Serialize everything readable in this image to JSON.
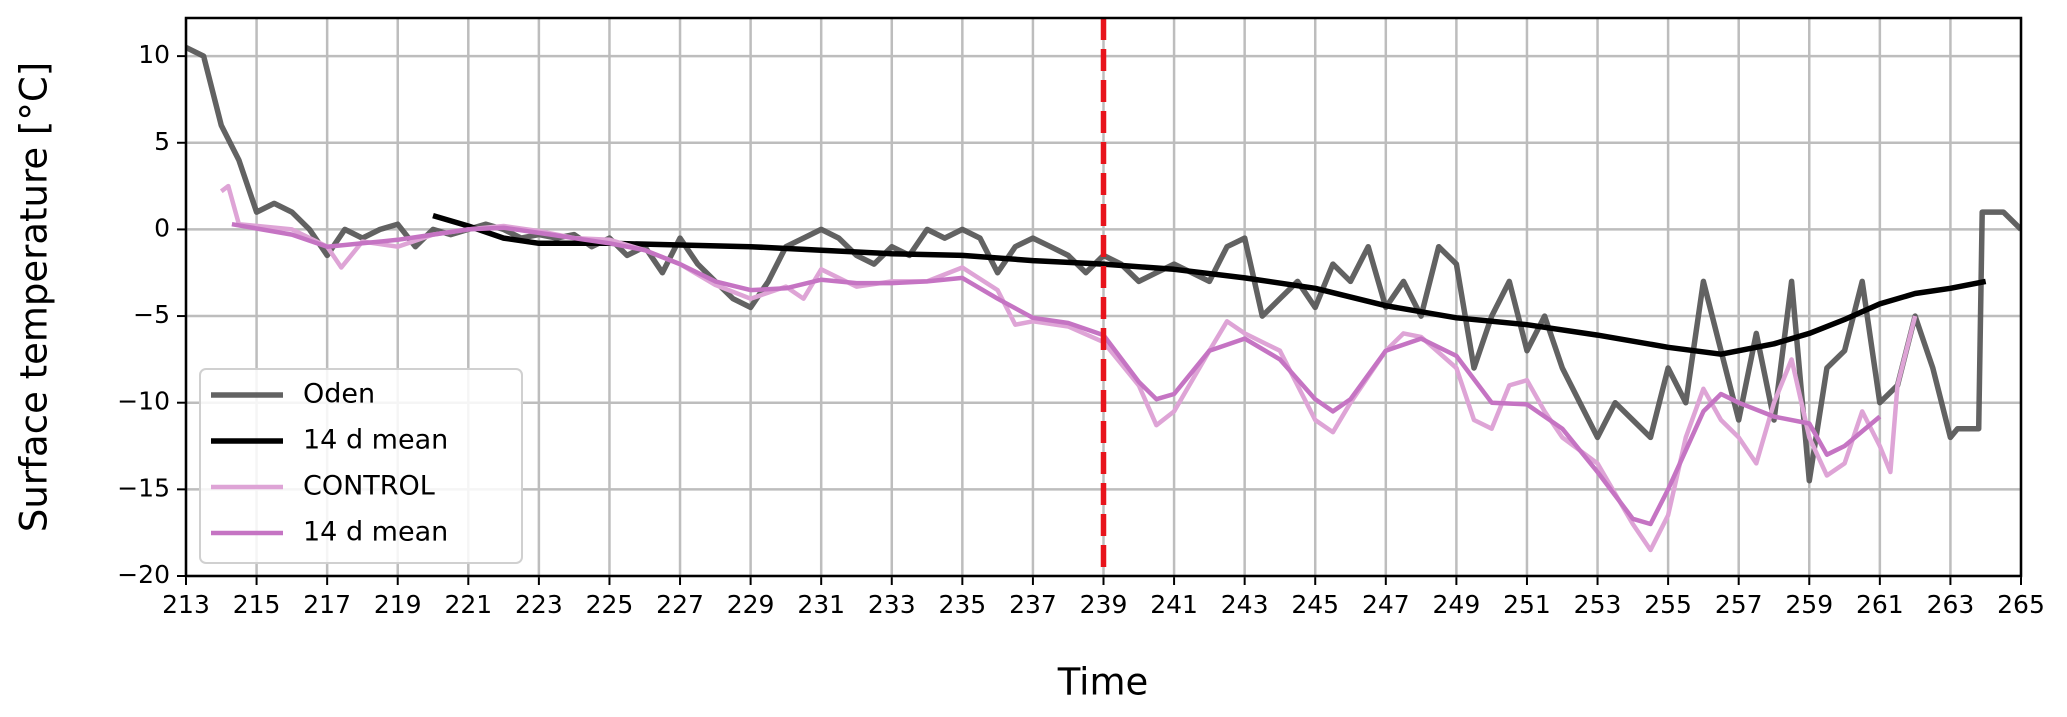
{
  "chart_data": {
    "type": "line",
    "xlabel": "Time",
    "ylabel": "Surface temperature [°C]",
    "xlim": [
      213,
      265
    ],
    "ylim": [
      -20,
      12.2
    ],
    "xticks": [
      213,
      215,
      217,
      219,
      221,
      223,
      225,
      227,
      229,
      231,
      233,
      235,
      237,
      239,
      241,
      243,
      245,
      247,
      249,
      251,
      253,
      255,
      257,
      259,
      261,
      263,
      265
    ],
    "yticks": [
      {
        "value": -20,
        "label": "−20"
      },
      {
        "value": -15,
        "label": "−15"
      },
      {
        "value": -10,
        "label": "−10"
      },
      {
        "value": -5,
        "label": "−5"
      },
      0,
      5,
      10
    ],
    "grid": true,
    "legend": "lower left",
    "vline": {
      "x": 239,
      "color": "#e8141c"
    },
    "series": [
      {
        "name": "Oden",
        "color": "#5a5a5a",
        "x": [
          213,
          213.5,
          214,
          214.5,
          215,
          215.5,
          216,
          216.5,
          217,
          217.5,
          218,
          218.5,
          219,
          219.5,
          220,
          220.5,
          221,
          221.5,
          222,
          222.5,
          223,
          223.5,
          224,
          224.5,
          225,
          225.5,
          226,
          226.5,
          227,
          227.5,
          228,
          228.5,
          229,
          229.5,
          230,
          230.5,
          231,
          231.5,
          232,
          232.5,
          233,
          233.5,
          234,
          234.5,
          235,
          235.5,
          236,
          236.5,
          237,
          237.5,
          238,
          238.5,
          239,
          239.5,
          240,
          240.5,
          241,
          241.5,
          242,
          242.5,
          243,
          243.5,
          244,
          244.5,
          245,
          245.5,
          246,
          246.5,
          247,
          247.5,
          248,
          248.5,
          249,
          249.5,
          250,
          250.5,
          251,
          251.5,
          252,
          252.5,
          253,
          253.5,
          254,
          254.5,
          255,
          255.5,
          256,
          256.5,
          257,
          257.5,
          258,
          258.5,
          259,
          259.5,
          260,
          260.5,
          261,
          261.5,
          262,
          262.5,
          263,
          263.2,
          263.8,
          263.9,
          264.5,
          265
        ],
        "values": [
          10.5,
          10,
          6,
          4,
          1,
          1.5,
          1,
          0,
          -1.5,
          0,
          -0.5,
          0,
          0.3,
          -1,
          0,
          -0.3,
          0,
          0.3,
          0,
          -0.5,
          -0.3,
          -0.5,
          -0.3,
          -1,
          -0.5,
          -1.5,
          -1,
          -2.5,
          -0.5,
          -2,
          -3,
          -4,
          -4.5,
          -3,
          -1,
          -0.5,
          0,
          -0.5,
          -1.5,
          -2,
          -1,
          -1.5,
          0,
          -0.5,
          0,
          -0.5,
          -2.5,
          -1,
          -0.5,
          -1,
          -1.5,
          -2.5,
          -1.5,
          -2,
          -3,
          -2.5,
          -2,
          -2.5,
          -3,
          -1,
          -0.5,
          -5,
          -4,
          -3,
          -4.5,
          -2,
          -3,
          -1,
          -4.5,
          -3,
          -5,
          -1,
          -2,
          -8,
          -5,
          -3,
          -7,
          -5,
          -8,
          -10,
          -12,
          -10,
          -11,
          -12,
          -8,
          -10,
          -3,
          -7,
          -11,
          -6,
          -11,
          -3,
          -14.5,
          -8,
          -7,
          -3,
          -10,
          -9,
          -5,
          -8,
          -12,
          -11.5,
          -11.5,
          1,
          1,
          0
        ]
      },
      {
        "name": "14 d mean",
        "color": "#000000",
        "x": [
          220,
          221,
          222,
          223,
          225,
          227,
          229,
          231,
          233,
          235,
          237,
          239,
          241,
          243,
          245,
          247,
          249,
          251,
          253,
          255,
          256.5,
          258,
          259,
          260,
          261,
          262,
          263,
          264
        ],
        "values": [
          0.8,
          0.2,
          -0.5,
          -0.8,
          -0.8,
          -0.9,
          -1,
          -1.2,
          -1.4,
          -1.5,
          -1.8,
          -2,
          -2.3,
          -2.8,
          -3.4,
          -4.4,
          -5.1,
          -5.5,
          -6.1,
          -6.8,
          -7.2,
          -6.6,
          -6,
          -5.2,
          -4.3,
          -3.7,
          -3.4,
          -3
        ]
      },
      {
        "name": "CONTROL",
        "color": "#dea4d6",
        "x": [
          214,
          214.2,
          214.5,
          216,
          217,
          217.4,
          218,
          219,
          220,
          221,
          222,
          223,
          224,
          225,
          226,
          227,
          228,
          229,
          230,
          230.5,
          231,
          232,
          233,
          234,
          235,
          236,
          236.5,
          237,
          238,
          239,
          240,
          240.5,
          241,
          242,
          242.5,
          243,
          244,
          245,
          245.5,
          246,
          247,
          247.5,
          248,
          249,
          249.5,
          250,
          250.5,
          251,
          251.5,
          252,
          253,
          254,
          254.5,
          255,
          255.5,
          256,
          256.5,
          257,
          257.5,
          258,
          258.5,
          259,
          259.5,
          260,
          260.5,
          261,
          261.3,
          261.5,
          262
        ],
        "values": [
          2.2,
          2.5,
          0.3,
          0,
          -1,
          -2.2,
          -0.7,
          -1,
          -0.3,
          0,
          0.2,
          -0.1,
          -0.5,
          -0.6,
          -1.2,
          -2,
          -3.2,
          -4,
          -3.3,
          -4,
          -2.3,
          -3.3,
          -3,
          -3,
          -2.2,
          -3.5,
          -5.5,
          -5.3,
          -5.6,
          -6.5,
          -9,
          -11.3,
          -10.5,
          -7,
          -5.3,
          -6,
          -7,
          -11,
          -11.7,
          -10,
          -7,
          -6,
          -6.2,
          -8,
          -11,
          -11.5,
          -9,
          -8.7,
          -10.5,
          -12,
          -13.5,
          -17,
          -18.5,
          -16.5,
          -12,
          -9.2,
          -11,
          -12,
          -13.5,
          -10,
          -7.5,
          -12,
          -14.2,
          -13.5,
          -10.5,
          -12.5,
          -14,
          -9,
          -5
        ]
      },
      {
        "name": "14 d mean",
        "color": "#c574c3",
        "x": [
          214.3,
          216,
          217,
          218,
          219,
          220,
          221,
          222,
          223,
          224,
          225,
          226,
          227,
          228,
          229,
          230,
          231,
          232,
          233,
          234,
          235,
          236,
          237,
          238,
          239,
          240,
          240.5,
          241,
          242,
          243,
          244,
          245,
          245.5,
          246,
          247,
          248,
          249,
          250,
          251,
          252,
          253,
          254,
          254.5,
          255,
          256,
          256.5,
          257,
          258,
          259,
          259.5,
          260,
          261
        ],
        "values": [
          0.3,
          -0.3,
          -1,
          -0.8,
          -0.6,
          -0.3,
          0,
          0.1,
          -0.2,
          -0.5,
          -0.8,
          -1.2,
          -2,
          -3,
          -3.5,
          -3.4,
          -2.9,
          -3.1,
          -3.1,
          -3,
          -2.8,
          -4,
          -5.1,
          -5.4,
          -6.1,
          -8.8,
          -9.8,
          -9.5,
          -7,
          -6.3,
          -7.5,
          -9.8,
          -10.5,
          -9.8,
          -7,
          -6.3,
          -7.3,
          -10,
          -10.1,
          -11.5,
          -14,
          -16.7,
          -17,
          -15,
          -10.5,
          -9.5,
          -10,
          -10.8,
          -11.2,
          -13,
          -12.5,
          -10.8
        ]
      }
    ]
  }
}
